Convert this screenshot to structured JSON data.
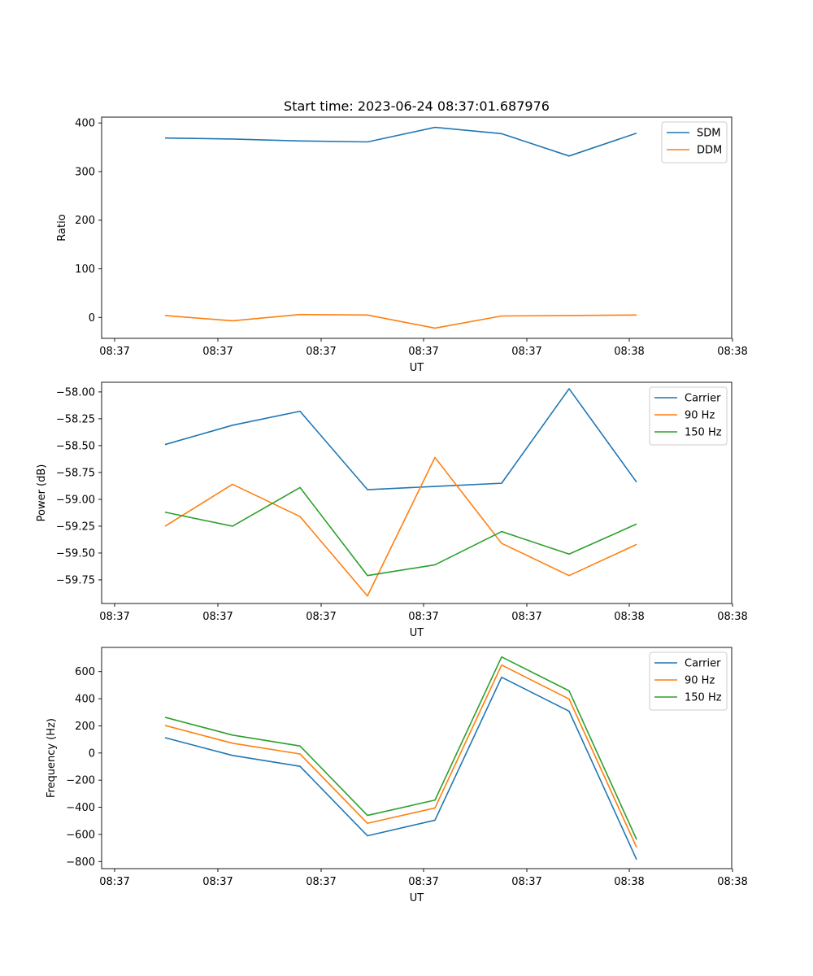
{
  "figure": {
    "title": "Start time: 2023-06-24 08:37:01.687976"
  },
  "chart_data": [
    {
      "type": "line",
      "title": "Start time: 2023-06-24 08:37:01.687976",
      "xlabel": "UT",
      "ylabel": "Ratio",
      "x_tick_labels": [
        "08:37",
        "08:37",
        "08:37",
        "08:37",
        "08:37",
        "08:38"
      ],
      "y_ticks": [
        0,
        100,
        200,
        300,
        400
      ],
      "y_tick_labels": [
        "0",
        "100",
        "200",
        "300",
        "400"
      ],
      "ylim": [
        -43,
        412
      ],
      "legend": "top-right",
      "series": [
        {
          "name": "SDM",
          "color": "#1f77b4",
          "values": [
            369,
            367,
            363,
            361,
            391,
            378,
            332,
            379
          ]
        },
        {
          "name": "DDM",
          "color": "#ff7f0e",
          "values": [
            4,
            -7,
            6,
            5,
            -22,
            3,
            4,
            5
          ]
        }
      ]
    },
    {
      "type": "line",
      "xlabel": "UT",
      "ylabel": "Power (dB)",
      "x_tick_labels": [
        "08:37",
        "08:37",
        "08:37",
        "08:37",
        "08:37",
        "08:38"
      ],
      "y_ticks": [
        -59.75,
        -59.5,
        -59.25,
        -59.0,
        -58.75,
        -58.5,
        -58.25,
        -58.0
      ],
      "y_tick_labels": [
        "−59.75",
        "−59.50",
        "−59.25",
        "−59.00",
        "−58.75",
        "−58.50",
        "−58.25",
        "−58.00"
      ],
      "ylim": [
        -59.97,
        -57.91
      ],
      "legend": "top-right",
      "series": [
        {
          "name": "Carrier",
          "color": "#1f77b4",
          "values": [
            -58.49,
            -58.31,
            -58.18,
            -58.91,
            -58.88,
            -58.85,
            -57.97,
            -58.84
          ]
        },
        {
          "name": "90 Hz",
          "color": "#ff7f0e",
          "values": [
            -59.25,
            -58.86,
            -59.16,
            -59.9,
            -58.61,
            -59.41,
            -59.71,
            -59.42
          ]
        },
        {
          "name": "150 Hz",
          "color": "#2ca02c",
          "values": [
            -59.12,
            -59.25,
            -58.89,
            -59.71,
            -59.61,
            -59.3,
            -59.51,
            -59.23
          ]
        }
      ]
    },
    {
      "type": "line",
      "xlabel": "UT",
      "ylabel": "Frequency (Hz)",
      "x_tick_labels": [
        "08:37",
        "08:37",
        "08:37",
        "08:37",
        "08:37",
        "08:38"
      ],
      "y_ticks": [
        -800,
        -600,
        -400,
        -200,
        0,
        200,
        400,
        600
      ],
      "y_tick_labels": [
        "−800",
        "−600",
        "−400",
        "−200",
        "0",
        "200",
        "400",
        "600"
      ],
      "ylim": [
        -852,
        778
      ],
      "legend": "top-right",
      "series": [
        {
          "name": "Carrier",
          "color": "#1f77b4",
          "values": [
            113,
            -18,
            -98,
            -610,
            -495,
            558,
            308,
            -785
          ]
        },
        {
          "name": "90 Hz",
          "color": "#ff7f0e",
          "values": [
            203,
            72,
            -7,
            -518,
            -405,
            648,
            398,
            -695
          ]
        },
        {
          "name": "150 Hz",
          "color": "#2ca02c",
          "values": [
            263,
            132,
            52,
            -460,
            -347,
            708,
            458,
            -637
          ]
        }
      ]
    }
  ]
}
